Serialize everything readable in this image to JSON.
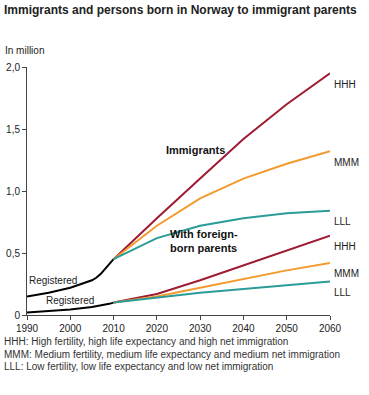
{
  "chart_data": {
    "type": "line",
    "title": "Immigrants and persons born in Norway to immigrant parents",
    "ylabel": "In million",
    "x": [
      1990,
      1995,
      2000,
      2005,
      2006,
      2007,
      2008,
      2009,
      2010,
      2020,
      2030,
      2040,
      2050,
      2060
    ],
    "series": [
      {
        "name": "Registered",
        "color": "#000000",
        "values": [
          0.15,
          0.18,
          0.22,
          0.28,
          0.3,
          0.33,
          0.37,
          0.41,
          0.45,
          null,
          null,
          null,
          null,
          null
        ]
      },
      {
        "name": "HHH",
        "color": "#9e1b32",
        "values": [
          null,
          null,
          null,
          null,
          null,
          null,
          null,
          null,
          0.45,
          0.78,
          1.1,
          1.42,
          1.7,
          1.95
        ]
      },
      {
        "name": "MMM",
        "color": "#f39a2e",
        "values": [
          null,
          null,
          null,
          null,
          null,
          null,
          null,
          null,
          0.45,
          0.72,
          0.94,
          1.1,
          1.22,
          1.32
        ]
      },
      {
        "name": "LLL",
        "color": "#2a9c98",
        "values": [
          null,
          null,
          null,
          null,
          null,
          null,
          null,
          null,
          0.45,
          0.62,
          0.72,
          0.78,
          0.82,
          0.84
        ]
      },
      {
        "name": "Registered",
        "color": "#000000",
        "values": [
          0.02,
          0.03,
          0.045,
          0.065,
          0.07,
          0.08,
          0.085,
          0.09,
          0.1,
          null,
          null,
          null,
          null,
          null
        ]
      },
      {
        "name": "HHH",
        "color": "#9e1b32",
        "values": [
          null,
          null,
          null,
          null,
          null,
          null,
          null,
          null,
          0.1,
          0.17,
          0.28,
          0.4,
          0.52,
          0.64
        ]
      },
      {
        "name": "MMM",
        "color": "#f39a2e",
        "values": [
          null,
          null,
          null,
          null,
          null,
          null,
          null,
          null,
          0.1,
          0.15,
          0.22,
          0.29,
          0.36,
          0.42
        ]
      },
      {
        "name": "LLL",
        "color": "#2a9c98",
        "values": [
          null,
          null,
          null,
          null,
          null,
          null,
          null,
          null,
          0.1,
          0.14,
          0.18,
          0.21,
          0.24,
          0.27
        ]
      }
    ],
    "xlim": [
      1990,
      2060
    ],
    "xticks": [
      1990,
      2000,
      2010,
      2020,
      2030,
      2040,
      2050,
      2060
    ],
    "ylim": [
      0,
      2
    ],
    "yticks": [
      0,
      {
        "value": 0.5,
        "label": "0,5"
      },
      {
        "value": 1,
        "label": "1,0"
      },
      {
        "value": 1.5,
        "label": "1,5"
      },
      {
        "value": 2,
        "label": "2,0"
      }
    ],
    "grid": false,
    "annotations": [
      "Immigrants",
      "With foreign-born parents"
    ],
    "notes": [
      "HHH: High fertility, high life expectancy and high net immigration",
      "MMM: Medium fertility, medium life expectancy and medium net immigration",
      "LLL: Low fertility, low life expectancy and low net immigration"
    ]
  }
}
